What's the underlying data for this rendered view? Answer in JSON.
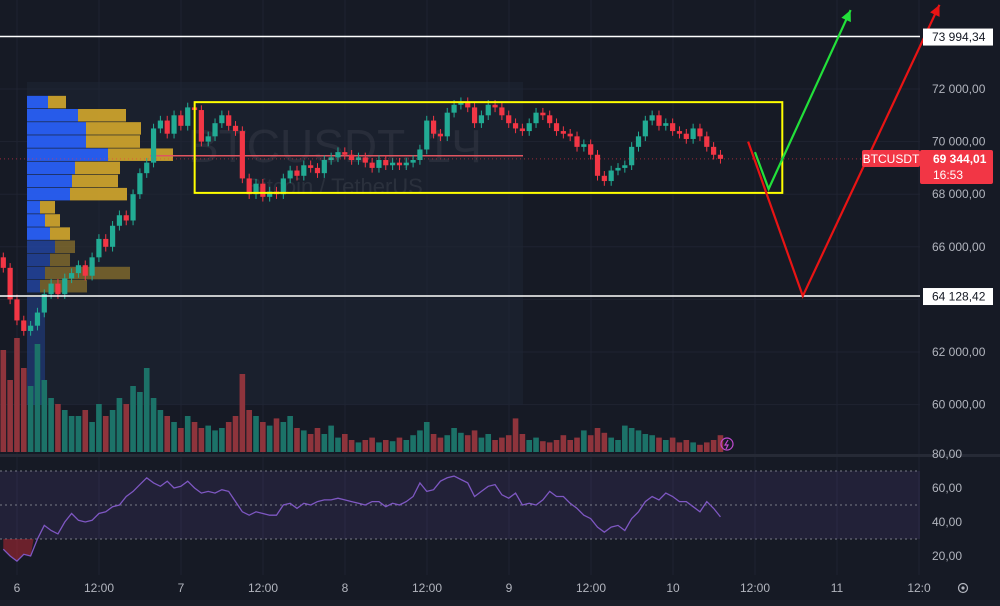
{
  "chart_data": {
    "type": "candlestick",
    "symbol": "BTCUSDT",
    "watermark": {
      "title": "BTCUSDT, 1Ч",
      "subtitle": "Bitcoin / TetherUS"
    },
    "interval": "1h",
    "time_ticks": [
      "6",
      "12:00",
      "7",
      "12:00",
      "8",
      "12:00",
      "9",
      "12:00",
      "10",
      "12:00",
      "11",
      "12:0"
    ],
    "price_ticks": [
      "72 000,00",
      "70 000,00",
      "68 000,00",
      "66 000,00",
      "62 000,00",
      "60 000,00"
    ],
    "ylim": [
      59600,
      75200
    ],
    "current_price": {
      "label": "BTCUSDT",
      "value": "69 344,01",
      "countdown": "16:53"
    },
    "horizontal_lines": [
      {
        "value": 73994.34,
        "label": "73 994,34"
      },
      {
        "value": 64128.42,
        "label": 64128.42,
        "text": "64 128,42"
      }
    ],
    "range_box": {
      "top": 71500,
      "bottom": 68050,
      "from": "7 02:00",
      "to": "10 16:00",
      "color": "#ffff00"
    },
    "scenario_paths": [
      {
        "color": "#22e03a",
        "points": [
          [
            "10 12:00",
            69600
          ],
          [
            "10 14:00",
            68200
          ],
          [
            "11 02:00",
            75000
          ]
        ]
      },
      {
        "color": "#e81414",
        "points": [
          [
            "10 11:00",
            70000
          ],
          [
            "10 19:00",
            64128
          ],
          [
            "11 15:00",
            75200
          ]
        ]
      }
    ],
    "close": [
      65200,
      64000,
      63200,
      62800,
      63000,
      63500,
      64200,
      64600,
      64200,
      64800,
      65000,
      65300,
      64900,
      65600,
      66300,
      66000,
      66800,
      67200,
      67000,
      68000,
      68800,
      69200,
      70500,
      70800,
      70300,
      71000,
      70600,
      71300,
      71200,
      70000,
      70200,
      70700,
      71000,
      70600,
      70400,
      68600,
      68000,
      68400,
      67900,
      68100,
      68000,
      68600,
      68900,
      68700,
      69100,
      69000,
      68800,
      69300,
      69400,
      69600,
      69500,
      69300,
      69400,
      69200,
      69000,
      69300,
      69100,
      69200,
      69100,
      69200,
      69300,
      69700,
      70800,
      70300,
      70200,
      71100,
      71400,
      71500,
      71300,
      70700,
      71000,
      71400,
      71300,
      71000,
      70700,
      70500,
      70400,
      70700,
      71100,
      71000,
      70700,
      70400,
      70300,
      70200,
      69800,
      69900,
      69500,
      68700,
      68500,
      68900,
      69000,
      69100,
      69800,
      70200,
      70800,
      71000,
      70600,
      70700,
      70400,
      70300,
      70100,
      70500,
      70200,
      69800,
      69500,
      69344.01
    ],
    "first_open": 65600,
    "volume": [
      85,
      60,
      95,
      70,
      55,
      90,
      60,
      45,
      40,
      35,
      30,
      30,
      35,
      25,
      40,
      30,
      35,
      45,
      40,
      55,
      50,
      70,
      45,
      35,
      30,
      25,
      20,
      30,
      25,
      20,
      22,
      18,
      20,
      25,
      30,
      65,
      35,
      30,
      25,
      22,
      28,
      25,
      30,
      20,
      18,
      15,
      20,
      15,
      22,
      12,
      15,
      10,
      8,
      10,
      12,
      8,
      10,
      9,
      12,
      10,
      14,
      18,
      25,
      15,
      12,
      14,
      20,
      16,
      14,
      18,
      12,
      15,
      10,
      12,
      14,
      28,
      15,
      10,
      12,
      9,
      8,
      10,
      14,
      10,
      12,
      18,
      14,
      20,
      16,
      12,
      10,
      22,
      20,
      18,
      15,
      14,
      12,
      10,
      12,
      8,
      10,
      8,
      6,
      8,
      10,
      14
    ],
    "rsi": {
      "ticks": [
        "80,00",
        "60,00",
        "40,00",
        "20,00"
      ],
      "levels": [
        70,
        50,
        30
      ],
      "ylim": [
        12,
        85
      ],
      "values": [
        24,
        20,
        17,
        21,
        20,
        30,
        38,
        35,
        33,
        40,
        45,
        41,
        40,
        41,
        45,
        46,
        49,
        50,
        55,
        58,
        62,
        66,
        63,
        61,
        64,
        60,
        61,
        64,
        60,
        57,
        58,
        57,
        59,
        58,
        52,
        46,
        44,
        46,
        45,
        44,
        44,
        50,
        51,
        48,
        51,
        50,
        52,
        53,
        53,
        54,
        53,
        52,
        51,
        50,
        52,
        52,
        49,
        51,
        50,
        52,
        55,
        63,
        58,
        59,
        64,
        66,
        67,
        65,
        63,
        55,
        58,
        61,
        62,
        56,
        54,
        57,
        50,
        51,
        50,
        53,
        58,
        55,
        55,
        51,
        48,
        44,
        42,
        37,
        34,
        37,
        38,
        35,
        42,
        46,
        52,
        55,
        53,
        57,
        55,
        52,
        52,
        49,
        46,
        52,
        48,
        43
      ]
    },
    "volume_profile": {
      "rows": [
        71500,
        71000,
        70500,
        70000,
        69500,
        69000,
        68500,
        68000,
        67500,
        67000,
        66500,
        66000,
        65500,
        65000,
        64500
      ],
      "up": [
        21,
        51,
        59,
        59,
        81,
        48,
        45,
        43,
        13,
        18,
        23,
        28,
        23,
        18,
        13
      ],
      "down": [
        18,
        48,
        55,
        54,
        65,
        45,
        46,
        57,
        15,
        15,
        20,
        20,
        20,
        85,
        47
      ],
      "poc": 69500,
      "up_color": "#2962ff",
      "down_color": "#d4a72c"
    },
    "colors": {
      "up": "#22ab94",
      "down": "#f23645",
      "rsi": "#7e57c2",
      "background": "#161a25"
    }
  },
  "icons": {
    "volume_flash": "lightning-icon",
    "settings": "settings-icon"
  }
}
